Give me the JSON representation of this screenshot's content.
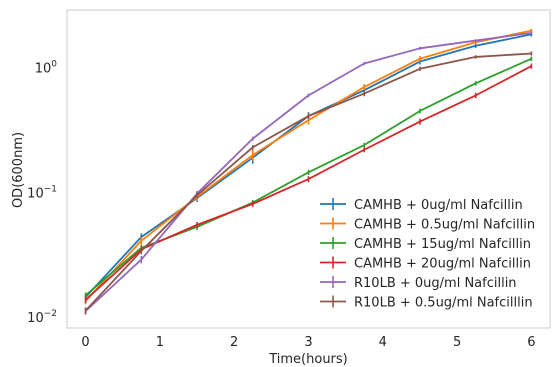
{
  "chart_data": {
    "type": "line",
    "xlabel": "Time(hours)",
    "ylabel": "OD(600nm)",
    "xscale": "linear",
    "yscale": "log",
    "xlim": [
      -0.25,
      6.25
    ],
    "ylim": [
      0.0082,
      2.9
    ],
    "x_ticks": [
      0,
      1,
      2,
      3,
      4,
      5,
      6
    ],
    "y_ticks": [
      {
        "value": 0.01,
        "base": "10",
        "exp": "−2"
      },
      {
        "value": 0.1,
        "base": "10",
        "exp": "−1"
      },
      {
        "value": 1,
        "base": "10",
        "exp": "0"
      }
    ],
    "grid": false,
    "legend_position": "lower-right",
    "x": [
      0,
      0.75,
      1.5,
      2.25,
      3,
      3.75,
      4.5,
      5.25,
      6
    ],
    "series": [
      {
        "name": "CAMHB + 0ug/ml Nafcillin",
        "color": "#1f77b4",
        "values": [
          0.0145,
          0.044,
          0.09,
          0.19,
          0.41,
          0.66,
          1.12,
          1.5,
          1.85
        ],
        "err": [
          0.0008,
          0.003,
          0.006,
          0.02,
          0.03,
          0.04,
          0.06,
          0.06,
          0.07
        ]
      },
      {
        "name": "CAMHB + 0.5ug/ml Nafcillin",
        "color": "#ff7f0e",
        "values": [
          0.0135,
          0.041,
          0.092,
          0.2,
          0.38,
          0.7,
          1.18,
          1.6,
          1.98
        ],
        "err": [
          0.0008,
          0.003,
          0.006,
          0.02,
          0.03,
          0.04,
          0.06,
          0.06,
          0.07
        ]
      },
      {
        "name": "CAMHB + 15ug/ml Nafcillin",
        "color": "#2ca02c",
        "values": [
          0.015,
          0.036,
          0.053,
          0.083,
          0.145,
          0.24,
          0.45,
          0.75,
          1.18
        ],
        "err": [
          0.0008,
          0.002,
          0.003,
          0.004,
          0.007,
          0.01,
          0.02,
          0.03,
          0.05
        ]
      },
      {
        "name": "CAMHB + 20ug/ml Nafcillin",
        "color": "#d62728",
        "values": [
          0.0138,
          0.035,
          0.055,
          0.081,
          0.128,
          0.22,
          0.37,
          0.6,
          1.03
        ],
        "err": [
          0.0008,
          0.002,
          0.003,
          0.004,
          0.007,
          0.01,
          0.02,
          0.03,
          0.05
        ]
      },
      {
        "name": "R10LB + 0ug/ml Nafcillin",
        "color": "#9467bd",
        "values": [
          0.0112,
          0.029,
          0.098,
          0.27,
          0.6,
          1.08,
          1.43,
          1.65,
          1.9
        ],
        "err": [
          0.0007,
          0.002,
          0.005,
          0.01,
          0.02,
          0.03,
          0.04,
          0.04,
          0.05
        ]
      },
      {
        "name": "R10LB + 0.5ug/ml Nafcilllin",
        "color": "#8c564b",
        "values": [
          0.0113,
          0.034,
          0.095,
          0.23,
          0.41,
          0.62,
          0.98,
          1.22,
          1.3
        ],
        "err": [
          0.0007,
          0.002,
          0.005,
          0.01,
          0.02,
          0.03,
          0.04,
          0.04,
          0.05
        ]
      }
    ]
  }
}
